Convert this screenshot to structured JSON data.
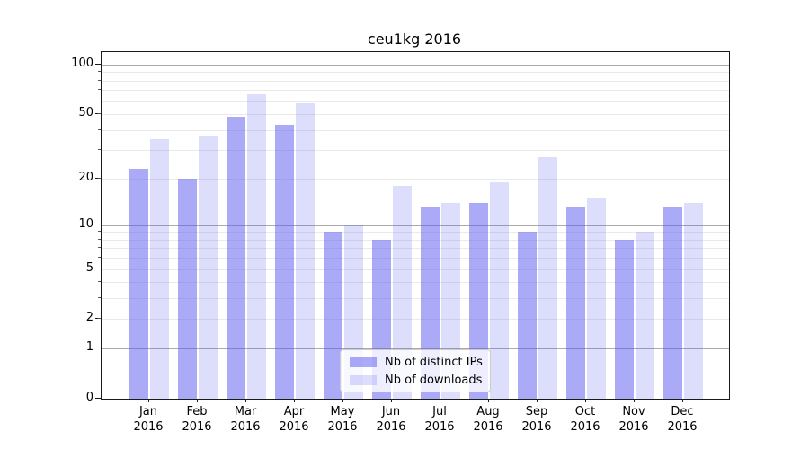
{
  "chart_data": {
    "type": "bar",
    "title": "ceu1kg 2016",
    "categories": [
      "Jan 2016",
      "Feb 2016",
      "Mar 2016",
      "Apr 2016",
      "May 2016",
      "Jun 2016",
      "Jul 2016",
      "Aug 2016",
      "Sep 2016",
      "Oct 2016",
      "Nov 2016",
      "Dec 2016"
    ],
    "series": [
      {
        "name": "Nb of distinct IPs",
        "fill": "rgba(85,85,240,0.5)",
        "values": [
          23,
          20,
          48,
          43,
          9,
          8,
          13,
          14,
          9,
          13,
          8,
          13
        ]
      },
      {
        "name": "Nb of downloads",
        "fill": "rgba(85,85,240,0.2)",
        "values": [
          35,
          37,
          66,
          58,
          10,
          18,
          14,
          19,
          27,
          15,
          9,
          14
        ]
      }
    ],
    "xlabel": "",
    "ylabel": "",
    "yscale": "log1p",
    "ylim": [
      0,
      121
    ],
    "yticks": [
      0,
      1,
      2,
      5,
      10,
      20,
      50,
      100
    ],
    "minor_grid_values": [
      2,
      3,
      4,
      5,
      6,
      7,
      8,
      9,
      20,
      30,
      40,
      50,
      60,
      70,
      80,
      90
    ],
    "major_grid_values": [
      1,
      10,
      100
    ],
    "grid": "both",
    "legend_position": "lower center",
    "colors": {
      "major_grid": "#ababab",
      "minor_grid": "#eaeaea",
      "axis": "#1a1a1a",
      "text": "#000000",
      "background": "#ffffff"
    }
  }
}
